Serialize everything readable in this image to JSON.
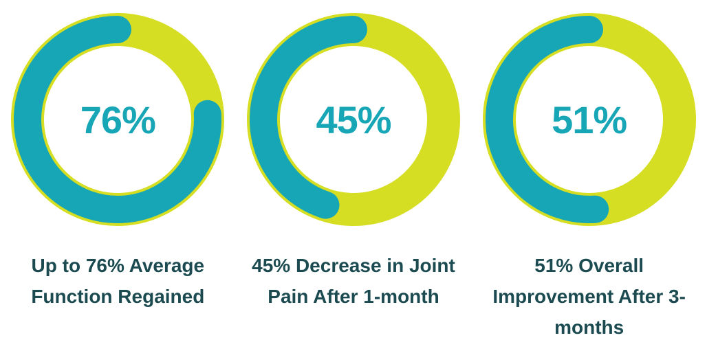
{
  "page": {
    "background": "#FFFFFF"
  },
  "chart_data": {
    "type": "donut",
    "arc_start": "top",
    "arc_direction": "counterclockwise",
    "legend_position": "none",
    "colors": {
      "progress": "#16A6B6",
      "track": "#D6DE23",
      "caption_text": "#1B4B50"
    },
    "charts": [
      {
        "value": 76,
        "remainder": 24,
        "center_label": "76%",
        "caption": "Up to 76% Average Function Regained"
      },
      {
        "value": 45,
        "remainder": 55,
        "center_label": "45%",
        "caption": "45% Decrease in Joint Pain After 1-month"
      },
      {
        "value": 51,
        "remainder": 49,
        "center_label": "51%",
        "caption": "51% Overall Improvement After 3-months"
      }
    ]
  }
}
